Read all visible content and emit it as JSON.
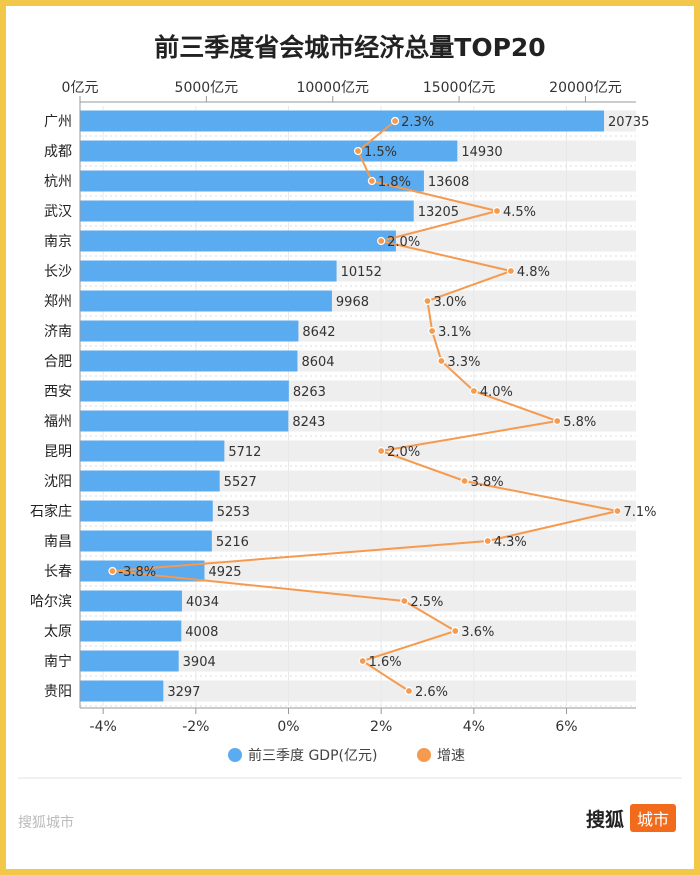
{
  "chart_data": {
    "type": "bar",
    "title": "前三季度省会城市经济总量TOP20",
    "categories": [
      "广州",
      "成都",
      "杭州",
      "武汉",
      "南京",
      "长沙",
      "郑州",
      "济南",
      "合肥",
      "西安",
      "福州",
      "昆明",
      "沈阳",
      "石家庄",
      "南昌",
      "长春",
      "哈尔滨",
      "太原",
      "南宁",
      "贵阳"
    ],
    "series": [
      {
        "name": "前三季度 GDP(亿元)",
        "type": "bar",
        "axis": "top",
        "color": "#5aabf0",
        "values": [
          20735,
          14930,
          13608,
          13205,
          null,
          10152,
          9968,
          8642,
          8604,
          8263,
          8243,
          5712,
          5527,
          5253,
          5216,
          4925,
          4034,
          4008,
          3904,
          3297
        ],
        "value_labels": [
          "20735",
          "14930",
          "13608",
          "13205",
          "",
          "10152",
          "9968",
          "8642",
          "8604",
          "8263",
          "8243",
          "5712",
          "5527",
          "5253",
          "5216",
          "4925",
          "4034",
          "4008",
          "3904",
          "3297"
        ],
        "estimated": {
          "4": 12500
        }
      },
      {
        "name": "增速",
        "type": "line",
        "axis": "bottom",
        "color": "#f59a4e",
        "values": [
          2.3,
          1.5,
          1.8,
          4.5,
          2.0,
          4.8,
          3.0,
          3.1,
          3.3,
          4.0,
          5.8,
          2.0,
          3.8,
          7.1,
          4.3,
          -3.8,
          2.5,
          3.6,
          1.6,
          2.6
        ],
        "value_labels": [
          "2.3%",
          "1.5%",
          "1.8%",
          "4.5%",
          "2.0%",
          "4.8%",
          "3.0%",
          "3.1%",
          "3.3%",
          "4.0%",
          "5.8%",
          "2.0%",
          "3.8%",
          "7.1%",
          "4.3%",
          "-3.8%",
          "2.5%",
          "3.6%",
          "1.6%",
          "2.6%"
        ]
      }
    ],
    "top_axis": {
      "range": [
        0,
        22000
      ],
      "ticks": [
        0,
        5000,
        10000,
        15000,
        20000
      ],
      "tick_labels": [
        "0亿元",
        "5000亿元",
        "10000亿元",
        "15000亿元",
        "20000亿元"
      ]
    },
    "bottom_axis": {
      "range": [
        -4.5,
        7.5
      ],
      "ticks": [
        -4,
        -2,
        0,
        2,
        4,
        6
      ],
      "tick_labels": [
        "-4%",
        "-2%",
        "0%",
        "2%",
        "4%",
        "6%"
      ]
    },
    "legend_position": "bottom",
    "grid": true
  },
  "footer": {
    "left_brand": "搜狐城市",
    "right_brand": "搜狐",
    "right_tag": "城市"
  }
}
